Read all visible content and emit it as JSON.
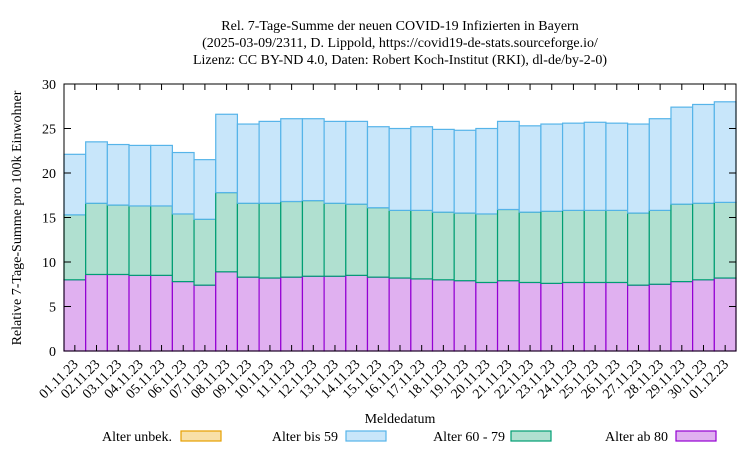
{
  "chart_data": {
    "type": "bar",
    "stacked": true,
    "title_lines": [
      "Rel. 7-Tage-Summe der neuen COVID-19 Infizierten in Bayern",
      "(2025-03-09/2311, D. Lippold, https://covid19-de-stats.sourceforge.io/",
      "Lizenz: CC BY-ND 4.0, Daten: Robert Koch-Institut (RKI), dl-de/by-2-0)"
    ],
    "xlabel": "Meldedatum",
    "ylabel": "Relative 7-Tage-Summe pro 100k Einwohner",
    "ylim": [
      0,
      30
    ],
    "yticks": [
      0,
      5,
      10,
      15,
      20,
      25,
      30
    ],
    "grid": false,
    "legend_position": "bottom",
    "categories": [
      "01.11.23",
      "02.11.23",
      "03.11.23",
      "04.11.23",
      "05.11.23",
      "06.11.23",
      "07.11.23",
      "08.11.23",
      "09.11.23",
      "10.11.23",
      "11.11.23",
      "12.11.23",
      "13.11.23",
      "14.11.23",
      "15.11.23",
      "16.11.23",
      "17.11.23",
      "18.11.23",
      "19.11.23",
      "20.11.23",
      "21.11.23",
      "22.11.23",
      "23.11.23",
      "24.11.23",
      "25.11.23",
      "26.11.23",
      "27.11.23",
      "28.11.23",
      "29.11.23",
      "30.11.23",
      "01.12.23"
    ],
    "series": [
      {
        "name": "Alter ab 80",
        "fill": "#e0b0f0",
        "stroke": "#9400d3",
        "values": [
          8.0,
          8.6,
          8.6,
          8.5,
          8.5,
          7.8,
          7.4,
          8.9,
          8.3,
          8.2,
          8.3,
          8.4,
          8.4,
          8.5,
          8.3,
          8.2,
          8.1,
          8.0,
          7.9,
          7.7,
          7.9,
          7.7,
          7.6,
          7.7,
          7.7,
          7.7,
          7.4,
          7.5,
          7.8,
          8.0,
          8.2
        ]
      },
      {
        "name": "Alter 60 - 79",
        "fill": "#b0e0d0",
        "stroke": "#009e73",
        "values": [
          7.3,
          8.0,
          7.8,
          7.8,
          7.8,
          7.6,
          7.4,
          8.9,
          8.3,
          8.4,
          8.5,
          8.5,
          8.2,
          8.0,
          7.8,
          7.6,
          7.7,
          7.6,
          7.6,
          7.7,
          8.0,
          7.9,
          8.1,
          8.1,
          8.1,
          8.1,
          8.1,
          8.3,
          8.7,
          8.6,
          8.5
        ]
      },
      {
        "name": "Alter bis 59",
        "fill": "#c8e6fa",
        "stroke": "#56b4e9",
        "values": [
          6.8,
          6.9,
          6.8,
          6.8,
          6.8,
          6.9,
          6.7,
          8.8,
          8.9,
          9.2,
          9.3,
          9.2,
          9.2,
          9.3,
          9.1,
          9.2,
          9.4,
          9.3,
          9.3,
          9.6,
          9.9,
          9.7,
          9.8,
          9.8,
          9.9,
          9.8,
          10.0,
          10.3,
          10.9,
          11.1,
          11.3
        ]
      },
      {
        "name": "Alter unbek.",
        "fill": "#f8e0a8",
        "stroke": "#e69f00",
        "values": [
          0,
          0,
          0,
          0,
          0,
          0,
          0,
          0,
          0,
          0,
          0,
          0,
          0,
          0,
          0,
          0,
          0,
          0,
          0,
          0,
          0,
          0,
          0,
          0,
          0,
          0,
          0,
          0,
          0,
          0,
          0
        ]
      }
    ],
    "legend_order": [
      "Alter unbek.",
      "Alter bis 59",
      "Alter 60 - 79",
      "Alter ab 80"
    ]
  }
}
